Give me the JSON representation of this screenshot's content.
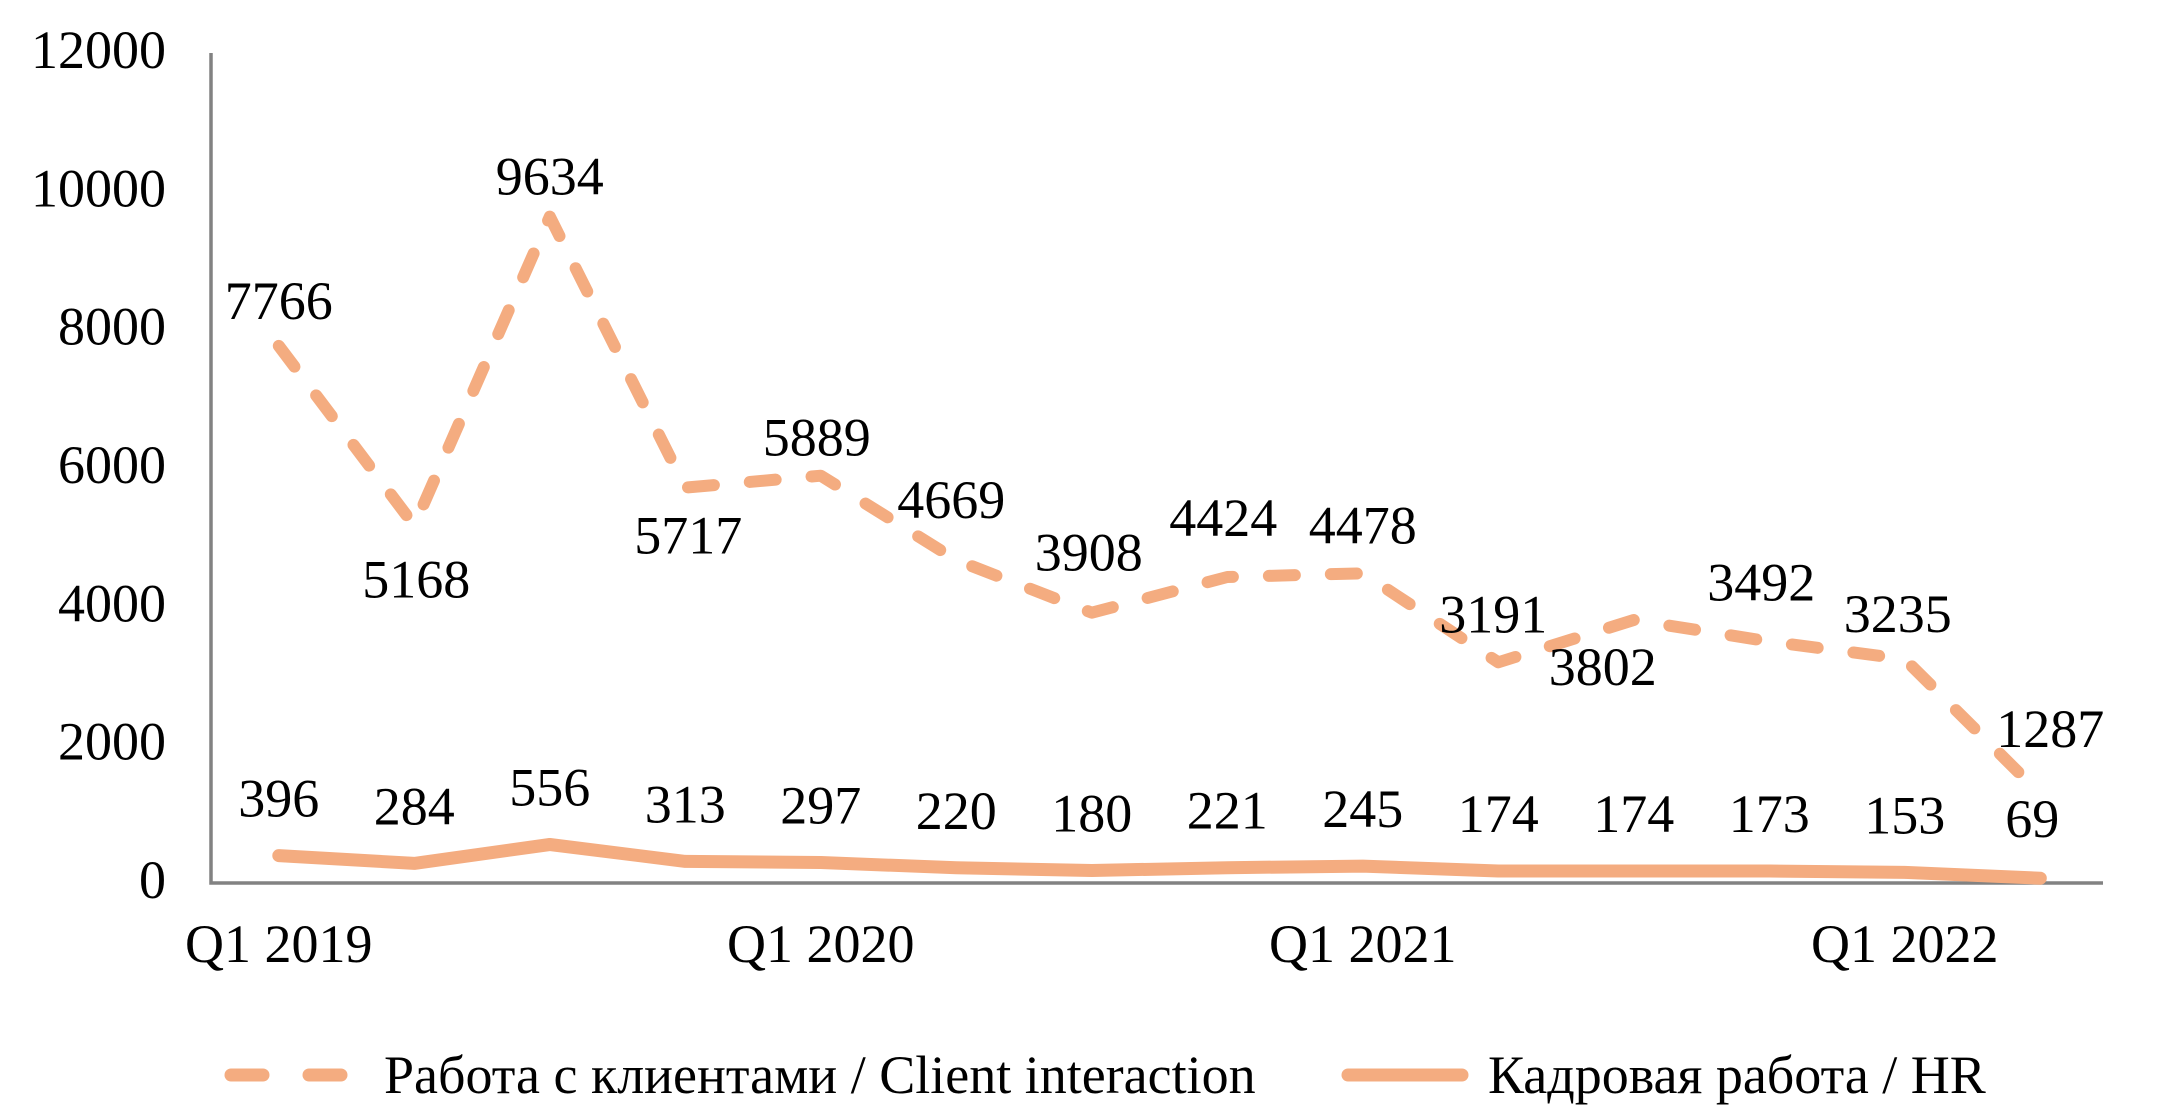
{
  "chart_data": {
    "type": "line",
    "title": "",
    "n_points": 14,
    "x_tick_labels": [
      "Q1 2019",
      "Q1 2020",
      "Q1 2021",
      "Q1 2022"
    ],
    "x_tick_positions": [
      0,
      4,
      8,
      12
    ],
    "y_ticks": [
      0,
      2000,
      4000,
      6000,
      8000,
      10000,
      12000
    ],
    "ylim": [
      0,
      12000
    ],
    "grid": false,
    "legend_position": "bottom",
    "colors": {
      "line": "#F4AC80",
      "axis": "#828282",
      "text": "#000000",
      "background": "#ffffff"
    },
    "series": [
      {
        "name": "Работа с клиентами / Client interaction",
        "style": "dashed",
        "values": [
          7766,
          5168,
          9634,
          5717,
          5889,
          4669,
          3908,
          4424,
          4478,
          3191,
          3802,
          3492,
          3235,
          1287
        ],
        "label_offsets": [
          [
            0,
            -45
          ],
          [
            2,
            54
          ],
          [
            0,
            -40
          ],
          [
            3,
            48
          ],
          [
            -4,
            -38
          ],
          [
            -5,
            -60
          ],
          [
            -3,
            -60
          ],
          [
            -4,
            -59
          ],
          [
            0,
            -48
          ],
          [
            -5,
            -48
          ],
          [
            -31,
            47
          ],
          [
            -8,
            -59
          ],
          [
            -7,
            -45
          ],
          [
            10,
            -65
          ]
        ]
      },
      {
        "name": "Кадровая работа / HR",
        "style": "solid",
        "values": [
          396,
          284,
          556,
          313,
          297,
          220,
          180,
          221,
          245,
          174,
          174,
          173,
          153,
          69
        ],
        "label_offsets": [
          [
            0,
            -57
          ],
          [
            0,
            -57
          ],
          [
            0,
            -57
          ],
          [
            0,
            -57
          ],
          [
            0,
            -57
          ],
          [
            0,
            -57
          ],
          [
            0,
            -57
          ],
          [
            0,
            -57
          ],
          [
            0,
            -57
          ],
          [
            0,
            -57
          ],
          [
            0,
            -57
          ],
          [
            0,
            -57
          ],
          [
            0,
            -57
          ],
          [
            -8,
            -59
          ]
        ]
      }
    ]
  }
}
